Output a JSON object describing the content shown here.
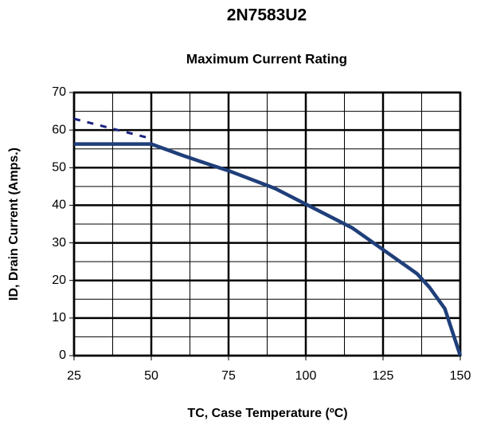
{
  "chart_data": {
    "type": "line",
    "title": "2N7583U2",
    "subtitle": "Maximum Current Rating",
    "x_label": "TC, Case Temperature (ºC)",
    "y_label": "ID, Drain Current (Amps.)",
    "series": [
      {
        "color": "#1f3f7a",
        "style": "solid",
        "x": [
          25,
          50,
          60,
          70,
          75,
          90,
          100,
          115,
          125,
          136,
          140,
          145,
          150
        ],
        "values": [
          56.3,
          56.3,
          53.3,
          50.5,
          49.2,
          44.5,
          40.3,
          34,
          28.2,
          21.8,
          18.2,
          12.5,
          0
        ]
      },
      {
        "color": "#1a237e",
        "style": "dashed",
        "x": [
          25,
          48.7
        ],
        "values": [
          63,
          58
        ]
      }
    ],
    "xlim": [
      25,
      150
    ],
    "xticks": [
      25,
      50,
      75,
      100,
      125,
      150
    ],
    "ylim": [
      0,
      70
    ],
    "yticks": [
      0,
      10,
      20,
      30,
      40,
      50,
      60,
      70
    ],
    "grid": true
  }
}
